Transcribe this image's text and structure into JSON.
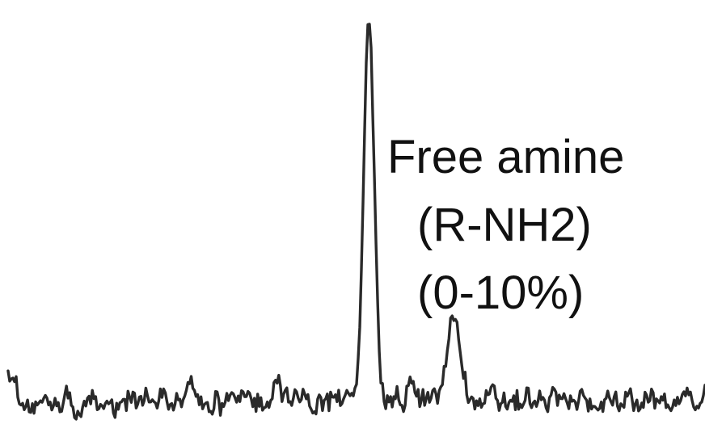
{
  "chart_data": {
    "type": "line",
    "title": "",
    "xlabel": "",
    "ylabel": "",
    "grid": false,
    "legend": "none",
    "line_color": "#2a2a2a",
    "xlim": [
      0,
      100
    ],
    "ylim": [
      0,
      100
    ],
    "peaks": [
      {
        "x": 51.8,
        "y": 100
      },
      {
        "x": 64.0,
        "y": 21.5
      }
    ],
    "annotation": {
      "lines": [
        "Free amine",
        "(R-NH2)",
        "(0-10%)"
      ]
    }
  }
}
